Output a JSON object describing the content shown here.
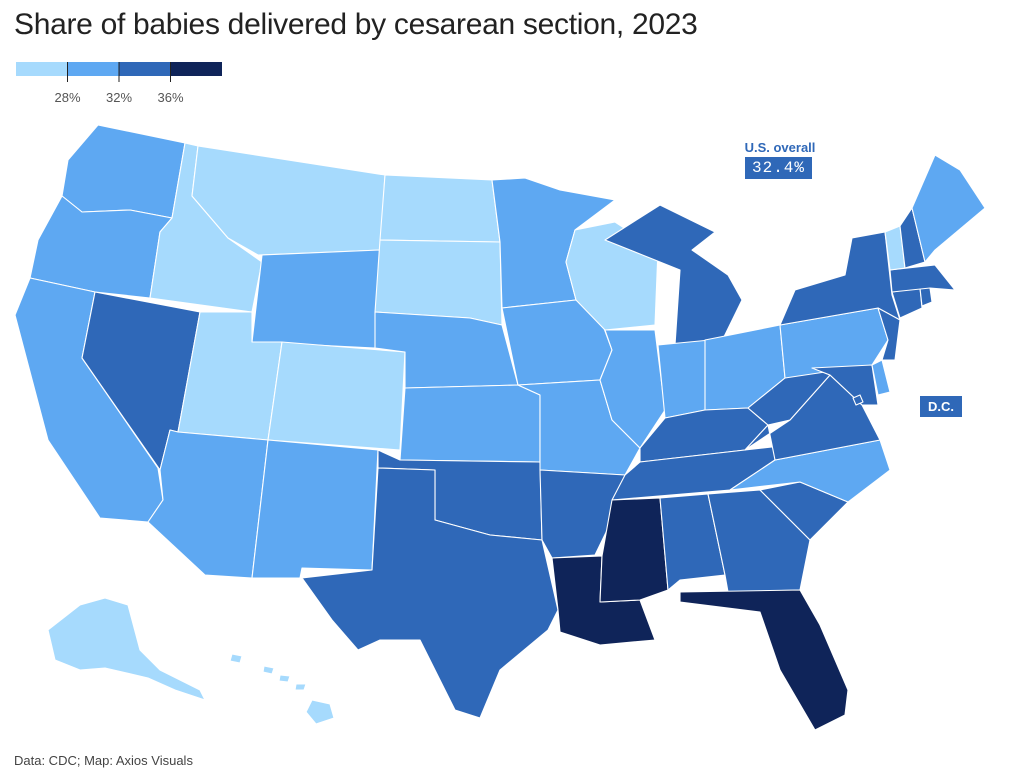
{
  "title": "Share of babies delivered by cesarean section, 2023",
  "legend": {
    "tick_labels": [
      "28%",
      "32%",
      "36%"
    ],
    "thresholds": [
      28,
      32,
      36
    ],
    "colors": [
      "#a6dafd",
      "#5ea8f2",
      "#2f68b8",
      "#0f2459"
    ]
  },
  "us_overall": {
    "label": "U.S. overall",
    "value": "32.4%"
  },
  "dc_label": "D.C.",
  "source": "Data: CDC; Map: Axios Visuals",
  "state_buckets": {
    "AK": 0,
    "HI": 0,
    "MT": 0,
    "ID": 0,
    "ND": 0,
    "SD": 0,
    "UT": 0,
    "CO": 0,
    "WI": 0,
    "VT": 0,
    "WA": 1,
    "OR": 1,
    "CA": 1,
    "AZ": 1,
    "NM": 1,
    "WY": 1,
    "NE": 1,
    "KS": 1,
    "MN": 1,
    "IA": 1,
    "MO": 1,
    "IL": 1,
    "IN": 1,
    "OH": 1,
    "PA": 1,
    "ME": 1,
    "NC": 1,
    "DE": 1,
    "NV": 2,
    "TX": 2,
    "OK": 2,
    "AR": 2,
    "MI": 2,
    "KY": 2,
    "TN": 2,
    "WV": 2,
    "VA": 2,
    "MD": 2,
    "NY": 2,
    "NJ": 2,
    "CT": 2,
    "RI": 2,
    "MA": 2,
    "NH": 2,
    "AL": 2,
    "GA": 2,
    "SC": 2,
    "DC": 2,
    "LA": 3,
    "MS": 3,
    "FL": 3
  }
}
